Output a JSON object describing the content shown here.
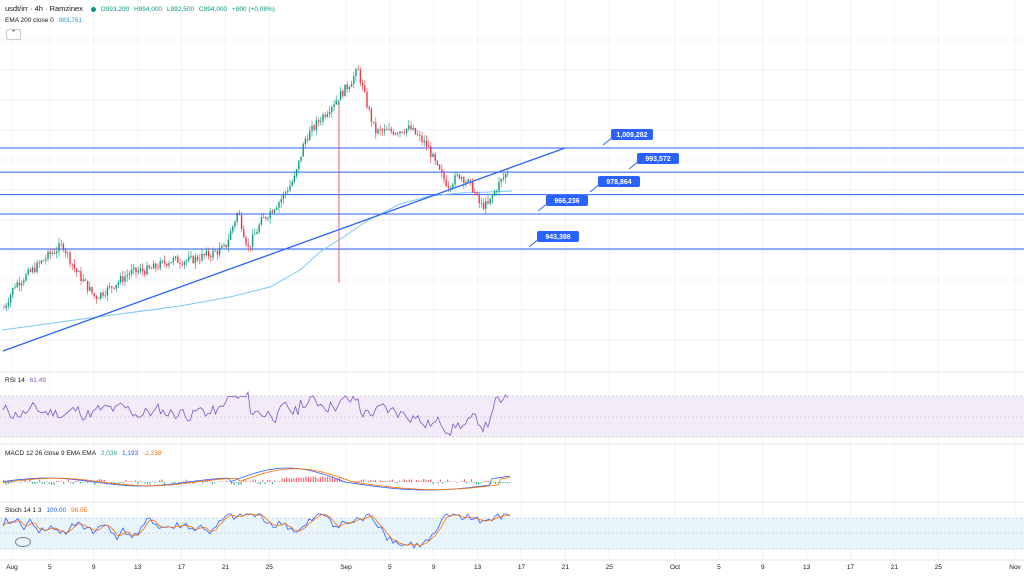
{
  "header": {
    "symbol": "usdt/irr · 4h · Ramzinex",
    "ohlc": {
      "O": "O993,200",
      "H": "H994,000",
      "L": "L992,500",
      "C": "C994,000",
      "change": "+800 (+0.08%)"
    }
  },
  "ema": {
    "label": "EMA 200 close 0",
    "value": "983,761"
  },
  "rsi": {
    "label": "RSI 14",
    "value": "61.49"
  },
  "macd": {
    "label": "MACD 12 26 close 9 EMA EMA",
    "v1": "2,036",
    "v2": "1,193",
    "v3": "-1,238"
  },
  "stoch": {
    "label": "Stoch 14 1 3",
    "v1": "100.00",
    "v2": "96.05"
  },
  "colors": {
    "up": "#089981",
    "down": "#f23645",
    "blue": "#2962ff",
    "ema": "#7ec8f0",
    "rsiLine": "#7e57c2",
    "rsiBand": "#ede7f6",
    "macdLine": "#2962ff",
    "signal": "#ff6d00",
    "stochBand": "#e3f2fd",
    "stochK": "#2962ff",
    "stochD": "#ff6d00"
  },
  "chart_data": {
    "type": "candlestick",
    "price_levels": [
      {
        "label": "1,009,282",
        "value": 1009282
      },
      {
        "label": "993,572",
        "value": 993572
      },
      {
        "label": "978,864",
        "value": 978864
      },
      {
        "label": "966,236",
        "value": 966236
      },
      {
        "label": "943,398",
        "value": 943398
      }
    ],
    "trendline": {
      "start": {
        "date": "Aug 1",
        "price": 898000
      },
      "end": {
        "date": "Sep 21",
        "price": 1010000
      }
    },
    "x_ticks": [
      "Aug",
      "5",
      "9",
      "13",
      "17",
      "21",
      "25",
      "Sep",
      "5",
      "9",
      "13",
      "17",
      "21",
      "25",
      "Oct",
      "5",
      "9",
      "13",
      "17",
      "21",
      "25",
      "Nov"
    ]
  }
}
